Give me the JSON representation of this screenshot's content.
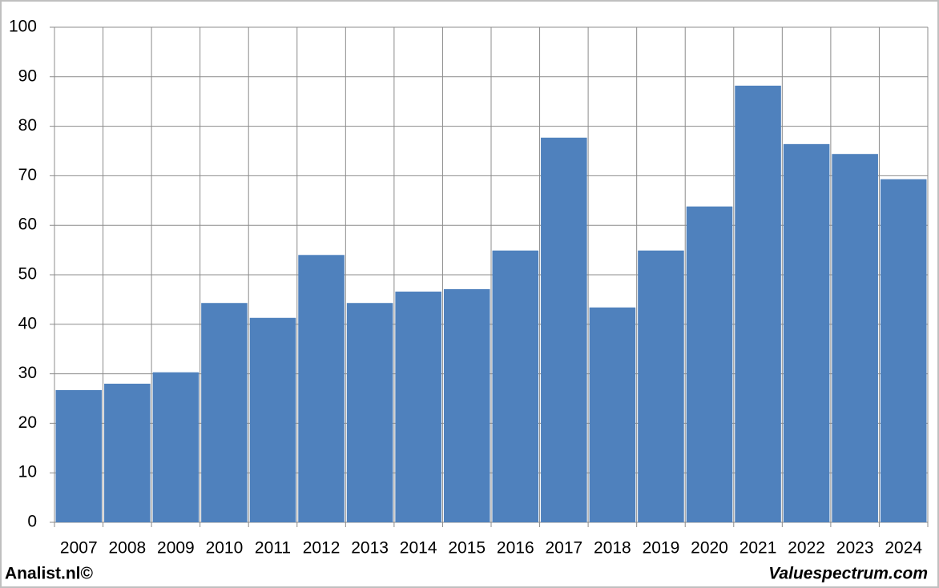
{
  "chart_data": {
    "type": "bar",
    "categories": [
      "2007",
      "2008",
      "2009",
      "2010",
      "2011",
      "2012",
      "2013",
      "2014",
      "2015",
      "2016",
      "2017",
      "2018",
      "2019",
      "2020",
      "2021",
      "2022",
      "2023",
      "2024"
    ],
    "values": [
      26.7,
      28.0,
      30.3,
      44.3,
      41.3,
      54.0,
      44.3,
      46.6,
      47.1,
      54.9,
      77.7,
      43.4,
      54.9,
      63.8,
      88.2,
      76.4,
      74.4,
      69.3
    ],
    "color": "#4f81bd",
    "ylim": [
      0,
      100
    ],
    "yticks": [
      0,
      10,
      20,
      30,
      40,
      50,
      60,
      70,
      80,
      90,
      100
    ],
    "grid": true,
    "source_left": "Analist.nl©",
    "source_right": "Valuespectrum.com"
  }
}
